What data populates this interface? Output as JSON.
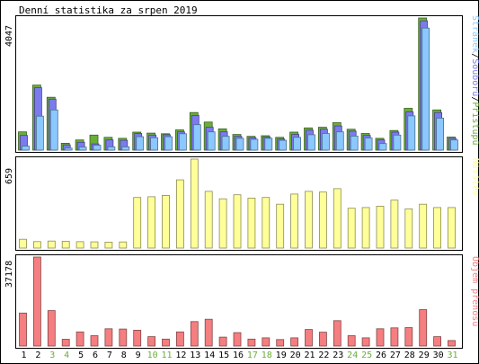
{
  "chart_data": [
    {
      "type": "bar",
      "title": "Denní statistika za srpen 2019",
      "ylabel": "4047",
      "legend": [
        "Přístupů",
        "Souborů",
        "Stránek"
      ],
      "legend_sep": "/",
      "categories": [
        "1",
        "2",
        "3",
        "4",
        "5",
        "6",
        "7",
        "8",
        "9",
        "10",
        "11",
        "12",
        "13",
        "14",
        "15",
        "16",
        "17",
        "18",
        "19",
        "20",
        "21",
        "22",
        "23",
        "24",
        "25",
        "26",
        "27",
        "28",
        "29",
        "30",
        "31"
      ],
      "weekend_days": [
        "3",
        "4",
        "10",
        "11",
        "17",
        "18",
        "24",
        "25",
        "31"
      ],
      "ylim": [
        0,
        4047
      ],
      "series": [
        {
          "name": "Přístupů",
          "color": "#6aae3a",
          "values": [
            560,
            1990,
            1620,
            210,
            310,
            460,
            390,
            360,
            550,
            520,
            500,
            620,
            1150,
            860,
            650,
            480,
            420,
            440,
            390,
            550,
            680,
            700,
            840,
            640,
            510,
            360,
            600,
            1280,
            4047,
            1230,
            400
          ]
        },
        {
          "name": "Souborů",
          "color": "#7b7bee",
          "values": [
            450,
            1910,
            1560,
            160,
            240,
            190,
            310,
            300,
            510,
            460,
            470,
            560,
            1060,
            700,
            560,
            420,
            380,
            400,
            340,
            480,
            610,
            640,
            740,
            580,
            450,
            310,
            550,
            1170,
            3960,
            1150,
            360
          ]
        },
        {
          "name": "Stránek",
          "color": "#8ac8ff",
          "values": [
            120,
            1040,
            1230,
            60,
            90,
            150,
            100,
            100,
            410,
            380,
            410,
            500,
            780,
            560,
            420,
            360,
            330,
            360,
            300,
            390,
            470,
            510,
            560,
            430,
            370,
            200,
            460,
            1050,
            3740,
            980,
            310
          ]
        }
      ]
    },
    {
      "type": "bar",
      "ylabel": "659",
      "legend": [
        "Návštěv"
      ],
      "categories": [
        "1",
        "2",
        "3",
        "4",
        "5",
        "6",
        "7",
        "8",
        "9",
        "10",
        "11",
        "12",
        "13",
        "14",
        "15",
        "16",
        "17",
        "18",
        "19",
        "20",
        "21",
        "22",
        "23",
        "24",
        "25",
        "26",
        "27",
        "28",
        "29",
        "30",
        "31"
      ],
      "ylim": [
        0,
        659
      ],
      "series": [
        {
          "name": "Návštěv",
          "color": "#ffff99",
          "values": [
            65,
            48,
            52,
            50,
            47,
            46,
            44,
            45,
            375,
            380,
            390,
            505,
            659,
            420,
            365,
            395,
            370,
            375,
            325,
            400,
            420,
            415,
            440,
            295,
            300,
            310,
            355,
            290,
            325,
            300,
            300
          ]
        }
      ]
    },
    {
      "type": "bar",
      "ylabel": "37178",
      "legend": [
        "Objem přenosu"
      ],
      "categories": [
        "1",
        "2",
        "3",
        "4",
        "5",
        "6",
        "7",
        "8",
        "9",
        "10",
        "11",
        "12",
        "13",
        "14",
        "15",
        "16",
        "17",
        "18",
        "19",
        "20",
        "21",
        "22",
        "23",
        "24",
        "25",
        "26",
        "27",
        "28",
        "29",
        "30",
        "31"
      ],
      "ylim": [
        0,
        37178
      ],
      "series": [
        {
          "name": "Objem přenosu",
          "color": "#f47e80",
          "values": [
            13800,
            37178,
            14800,
            2800,
            5900,
            4300,
            7200,
            7100,
            6600,
            3900,
            2900,
            5900,
            10200,
            11200,
            3700,
            5600,
            2900,
            3400,
            2700,
            3400,
            6900,
            5800,
            10600,
            4300,
            3400,
            7200,
            7600,
            7700,
            15200,
            3900,
            2300
          ]
        }
      ]
    }
  ]
}
